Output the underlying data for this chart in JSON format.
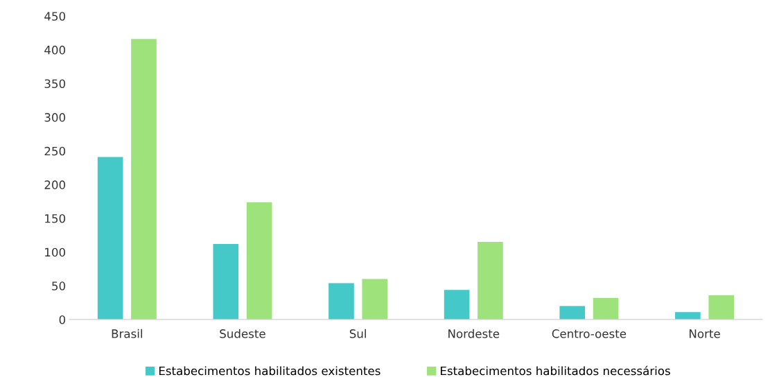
{
  "chart_data": {
    "type": "bar",
    "categories": [
      "Brasil",
      "Sudeste",
      "Sul",
      "Nordeste",
      "Centro-oeste",
      "Norte"
    ],
    "series": [
      {
        "name": "Estabecimentos habilitados existentes",
        "color": "#45c8c8",
        "values": [
          241,
          112,
          54,
          44,
          20,
          11
        ]
      },
      {
        "name": "Estabecimentos habilitados necessários",
        "color": "#9de27a",
        "values": [
          416,
          174,
          60,
          115,
          32,
          36
        ]
      }
    ],
    "ylim": [
      0,
      450
    ],
    "yticks": [
      0,
      50,
      100,
      150,
      200,
      250,
      300,
      350,
      400,
      450
    ],
    "grid": false,
    "legend": "bottom"
  }
}
